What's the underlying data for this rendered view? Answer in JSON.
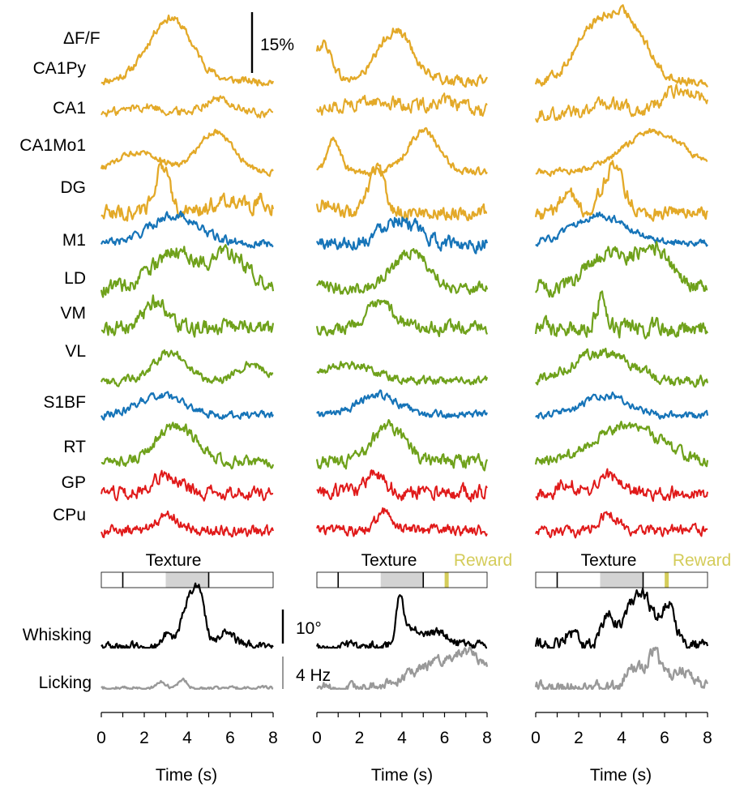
{
  "colors": {
    "hippocampus": "#E3A928",
    "cortex": "#1674B8",
    "thalamus": "#6FA11B",
    "basal_ganglia": "#E01A1A",
    "whisking": "#000000",
    "licking": "#999999",
    "texture_zone": "#D3D3D3",
    "reward": "#D4CC5A"
  },
  "chart_data": {
    "type": "line",
    "scale_bars": {
      "dff_label": "ΔF/F",
      "dff_value": "15%",
      "whisk_value": "10°",
      "lick_value": "4 Hz"
    },
    "region_labels": [
      "CA1Py",
      "CA1",
      "CA1Mo1",
      "DG",
      "M1",
      "LD",
      "VM",
      "VL",
      "S1BF",
      "RT",
      "GP",
      "CPu"
    ],
    "region_groups": [
      "hippocampus",
      "hippocampus",
      "hippocampus",
      "hippocampus",
      "cortex",
      "thalamus",
      "thalamus",
      "thalamus",
      "cortex",
      "thalamus",
      "basal_ganglia",
      "basal_ganglia"
    ],
    "behavior_labels": [
      "Whisking",
      "Licking"
    ],
    "xlabel": "Time (s)",
    "xlim": [
      0,
      8
    ],
    "xticks": [
      "0",
      "2",
      "4",
      "6",
      "8"
    ],
    "trials": [
      {
        "texture_label": "Texture",
        "reward_label": "",
        "texture_onset": 1.0,
        "texture_shade": [
          3.0,
          5.0
        ],
        "texture_end": 5.0,
        "reward_time": null,
        "regions": [
          {
            "peaks": [
              [
                3.2,
                1.0,
                1.0
              ]
            ],
            "noise": 0.05
          },
          {
            "peaks": [
              [
                2.0,
                0.3,
                0.8
              ],
              [
                5.4,
                0.6,
                0.7
              ]
            ],
            "noise": 0.15
          },
          {
            "peaks": [
              [
                1.8,
                0.5,
                1.0
              ],
              [
                5.3,
                1.0,
                0.8
              ]
            ],
            "noise": 0.06
          },
          {
            "peaks": [
              [
                2.8,
                1.0,
                0.35
              ],
              [
                5.8,
                0.3,
                0.6
              ],
              [
                7.5,
                0.25,
                0.4
              ]
            ],
            "noise": 0.14
          },
          {
            "peaks": [
              [
                3.4,
                1.0,
                1.1
              ]
            ],
            "noise": 0.12
          },
          {
            "peaks": [
              [
                3.5,
                0.9,
                1.0
              ],
              [
                6.0,
                0.8,
                0.8
              ]
            ],
            "noise": 0.15
          },
          {
            "peaks": [
              [
                2.5,
                1.0,
                0.45
              ]
            ],
            "noise": 0.22
          },
          {
            "peaks": [
              [
                3.2,
                1.0,
                0.8
              ],
              [
                7.0,
                0.6,
                0.6
              ]
            ],
            "noise": 0.12
          },
          {
            "peaks": [
              [
                2.8,
                1.0,
                1.0
              ]
            ],
            "noise": 0.15
          },
          {
            "peaks": [
              [
                3.5,
                1.0,
                0.9
              ]
            ],
            "noise": 0.12
          },
          {
            "peaks": [
              [
                3.0,
                1.0,
                0.6
              ]
            ],
            "noise": 0.3
          },
          {
            "peaks": [
              [
                3.1,
                1.0,
                0.45
              ]
            ],
            "noise": 0.25
          }
        ],
        "whisking": {
          "peaks": [
            [
              4.1,
              1.0,
              0.35
            ],
            [
              4.6,
              0.9,
              0.25
            ],
            [
              3.0,
              0.25,
              0.15
            ],
            [
              5.8,
              0.3,
              0.4
            ]
          ],
          "noise": 0.08
        },
        "licking": {
          "peaks": [
            [
              2.8,
              0.2,
              0.2
            ],
            [
              3.8,
              0.25,
              0.2
            ]
          ],
          "noise": 0.04
        }
      },
      {
        "texture_label": "Texture",
        "reward_label": "Reward",
        "texture_onset": 1.0,
        "texture_shade": [
          3.0,
          5.0
        ],
        "texture_end": 5.0,
        "reward_time": 6.1,
        "regions": [
          {
            "peaks": [
              [
                0.3,
                0.6,
                0.4
              ],
              [
                3.7,
                0.8,
                0.8
              ]
            ],
            "noise": 0.06
          },
          {
            "peaks": [
              [
                2.5,
                0.5,
                1.5
              ],
              [
                6.0,
                0.4,
                1.0
              ]
            ],
            "noise": 0.22
          },
          {
            "peaks": [
              [
                0.8,
                0.8,
                0.3
              ],
              [
                5.0,
                1.0,
                0.7
              ]
            ],
            "noise": 0.07
          },
          {
            "peaks": [
              [
                2.8,
                1.0,
                0.35
              ],
              [
                0.3,
                0.2,
                0.4
              ]
            ],
            "noise": 0.12
          },
          {
            "peaks": [
              [
                3.8,
                0.9,
                0.8
              ]
            ],
            "noise": 0.2
          },
          {
            "peaks": [
              [
                4.4,
                0.9,
                0.8
              ]
            ],
            "noise": 0.12
          },
          {
            "peaks": [
              [
                3.0,
                0.8,
                0.7
              ]
            ],
            "noise": 0.18
          },
          {
            "peaks": [
              [
                1.5,
                0.6,
                1.2
              ]
            ],
            "noise": 0.12
          },
          {
            "peaks": [
              [
                2.9,
                1.0,
                0.9
              ]
            ],
            "noise": 0.15
          },
          {
            "peaks": [
              [
                3.4,
                1.0,
                0.7
              ]
            ],
            "noise": 0.15
          },
          {
            "peaks": [
              [
                2.8,
                1.0,
                0.5
              ]
            ],
            "noise": 0.35
          },
          {
            "peaks": [
              [
                3.2,
                1.0,
                0.4
              ]
            ],
            "noise": 0.25
          }
        ],
        "whisking": {
          "peaks": [
            [
              3.9,
              1.0,
              0.15
            ],
            [
              4.3,
              0.4,
              0.4
            ],
            [
              5.6,
              0.3,
              0.6
            ]
          ],
          "noise": 0.08
        },
        "licking": {
          "peaks": [
            [
              6.2,
              0.8,
              1.6
            ],
            [
              7.2,
              0.4,
              0.6
            ]
          ],
          "noise": 0.12
        }
      },
      {
        "texture_label": "Texture",
        "reward_label": "Reward",
        "texture_onset": 1.0,
        "texture_shade": [
          3.0,
          5.0
        ],
        "texture_end": 5.0,
        "reward_time": 6.1,
        "regions": [
          {
            "peaks": [
              [
                2.5,
                0.7,
                0.8
              ],
              [
                4.2,
                1.0,
                0.9
              ]
            ],
            "noise": 0.06
          },
          {
            "peaks": [
              [
                3.3,
                0.4,
                0.8
              ],
              [
                6.8,
                1.0,
                0.9
              ]
            ],
            "noise": 0.22
          },
          {
            "peaks": [
              [
                5.5,
                1.0,
                1.4
              ]
            ],
            "noise": 0.06
          },
          {
            "peaks": [
              [
                1.5,
                0.5,
                0.3
              ],
              [
                3.6,
                1.0,
                0.5
              ]
            ],
            "noise": 0.12
          },
          {
            "peaks": [
              [
                3.0,
                1.0,
                1.2
              ]
            ],
            "noise": 0.1
          },
          {
            "peaks": [
              [
                3.3,
                0.8,
                0.9
              ],
              [
                5.5,
                1.0,
                0.8
              ]
            ],
            "noise": 0.15
          },
          {
            "peaks": [
              [
                3.0,
                1.0,
                0.2
              ]
            ],
            "noise": 0.25
          },
          {
            "peaks": [
              [
                3.0,
                1.0,
                1.3
              ]
            ],
            "noise": 0.15
          },
          {
            "peaks": [
              [
                3.3,
                1.0,
                1.0
              ]
            ],
            "noise": 0.15
          },
          {
            "peaks": [
              [
                4.3,
                1.0,
                1.5
              ]
            ],
            "noise": 0.12
          },
          {
            "peaks": [
              [
                1.5,
                0.6,
                0.4
              ],
              [
                3.4,
                0.9,
                0.5
              ]
            ],
            "noise": 0.3
          },
          {
            "peaks": [
              [
                3.4,
                1.0,
                0.45
              ]
            ],
            "noise": 0.25
          }
        ],
        "whisking": {
          "peaks": [
            [
              3.4,
              0.8,
              0.3
            ],
            [
              4.5,
              0.85,
              0.4
            ],
            [
              5.2,
              0.85,
              0.4
            ],
            [
              6.2,
              1.0,
              0.3
            ],
            [
              1.6,
              0.3,
              0.3
            ]
          ],
          "noise": 0.12
        },
        "licking": {
          "peaks": [
            [
              4.6,
              0.6,
              0.4
            ],
            [
              5.5,
              1.0,
              0.3
            ],
            [
              6.8,
              0.5,
              0.6
            ]
          ],
          "noise": 0.15
        }
      }
    ]
  }
}
